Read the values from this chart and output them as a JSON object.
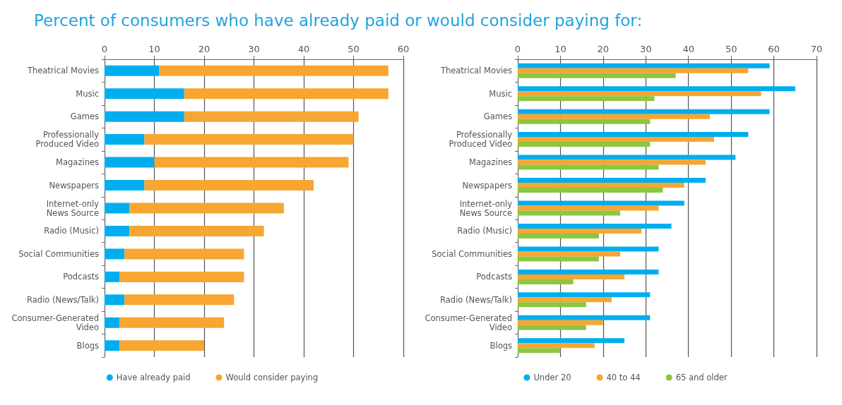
{
  "chart_data": [
    {
      "type": "bar",
      "title": "Percent of consumers who have already paid or would consider paying for:",
      "orientation": "horizontal",
      "stacked": true,
      "categories": [
        "Theatrical Movies",
        "Music",
        "Games",
        "Professionally\nProduced Video",
        "Magazines",
        "Newspapers",
        "Internet-only\nNews Source",
        "Radio (Music)",
        "Social Communities",
        "Podcasts",
        "Radio (News/Talk)",
        "Consumer-Generated\nVideo",
        "Blogs"
      ],
      "series": [
        {
          "name": "Have already paid",
          "color": "#00aeef",
          "values": [
            11,
            16,
            16,
            8,
            10,
            8,
            5,
            5,
            4,
            3,
            4,
            3,
            3
          ]
        },
        {
          "name": "Would consider paying",
          "color": "#f7a632",
          "values": [
            46,
            41,
            35,
            42,
            39,
            34,
            31,
            27,
            24,
            25,
            22,
            21,
            17
          ]
        }
      ],
      "xlim": [
        0,
        60
      ],
      "xticks": [
        0,
        10,
        20,
        30,
        40,
        50,
        60
      ],
      "grid": "x",
      "legend": "bottom"
    },
    {
      "type": "bar",
      "orientation": "horizontal",
      "categories": [
        "Theatrical Movies",
        "Music",
        "Games",
        "Professionally\nProduced Video",
        "Magazines",
        "Newspapers",
        "Internet-only\nNews Source",
        "Radio (Music)",
        "Social Communities",
        "Podcasts",
        "Radio (News/Talk)",
        "Consumer-Generated\nVideo",
        "Blogs"
      ],
      "series": [
        {
          "name": "Under 20",
          "color": "#00aeef",
          "values": [
            59,
            65,
            59,
            54,
            51,
            44,
            39,
            36,
            33,
            33,
            31,
            31,
            25
          ]
        },
        {
          "name": "40 to 44",
          "color": "#f7a632",
          "values": [
            54,
            57,
            45,
            46,
            44,
            39,
            33,
            29,
            24,
            25,
            22,
            20,
            18
          ]
        },
        {
          "name": "65 and older",
          "color": "#8dc63f",
          "values": [
            37,
            32,
            31,
            31,
            33,
            34,
            24,
            19,
            19,
            13,
            16,
            16,
            10
          ]
        }
      ],
      "xlim": [
        0,
        70
      ],
      "xticks": [
        0,
        10,
        20,
        30,
        40,
        50,
        60,
        70
      ],
      "grid": "x",
      "legend": "bottom"
    }
  ]
}
